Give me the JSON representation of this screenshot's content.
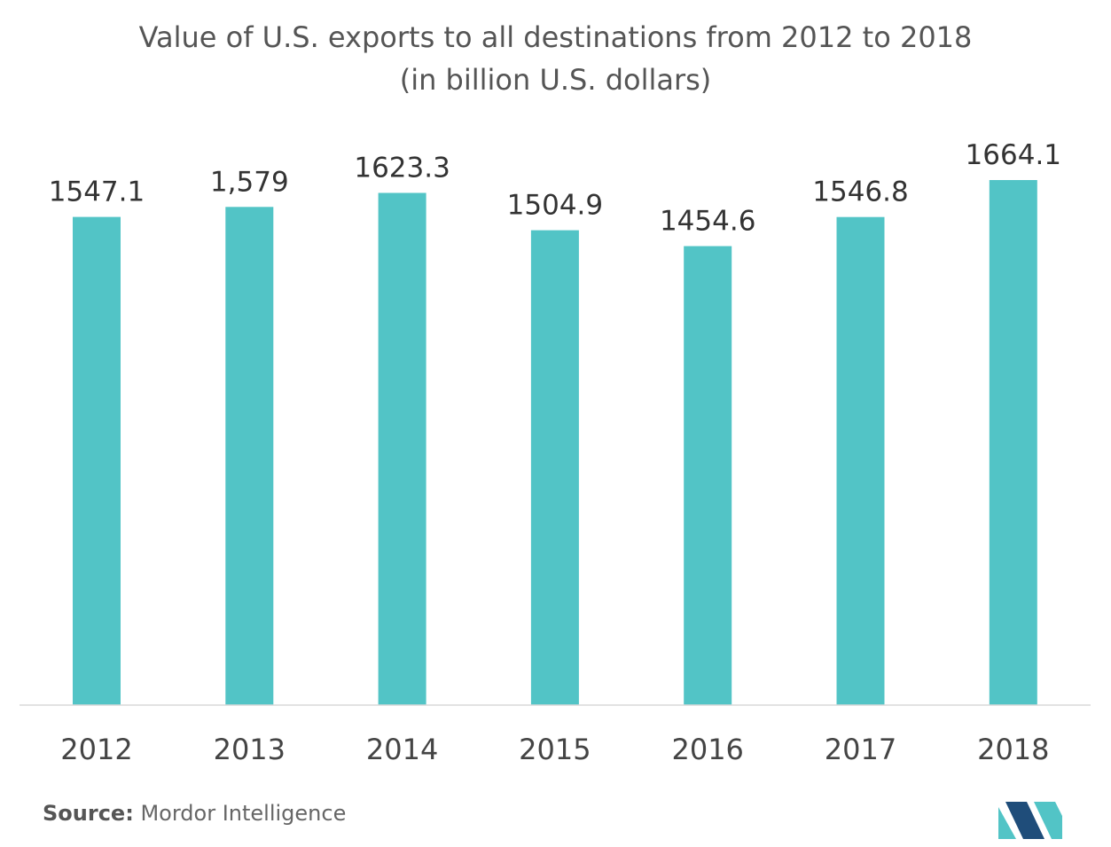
{
  "title_line1": "Value of U.S. exports to all destinations from 2012 to 2018",
  "title_line2": "(in billion U.S. dollars)",
  "source": {
    "label": "Source:",
    "value": "Mordor Intelligence"
  },
  "colors": {
    "bar": "#52C4C6",
    "axis": "#d9d9d9",
    "label_text": "#333333",
    "logo_dark": "#1f4d7a",
    "logo_teal": "#52C4C6"
  },
  "logo_icon": "mordor-intelligence-logo",
  "chart_data": {
    "type": "bar",
    "categories": [
      "2012",
      "2013",
      "2014",
      "2015",
      "2016",
      "2017",
      "2018"
    ],
    "values": [
      1547.1,
      1579,
      1623.3,
      1504.9,
      1454.6,
      1546.8,
      1664.1
    ],
    "data_labels": [
      "1547.1",
      "1,579",
      "1623.3",
      "1504.9",
      "1454.6",
      "1546.8",
      "1664.1"
    ],
    "title": "Value of U.S. exports to all destinations from 2012 to 2018 (in billion U.S. dollars)",
    "xlabel": "",
    "ylabel": "",
    "ylim": [
      0,
      1664.1
    ],
    "grid": false,
    "legend": "none"
  }
}
